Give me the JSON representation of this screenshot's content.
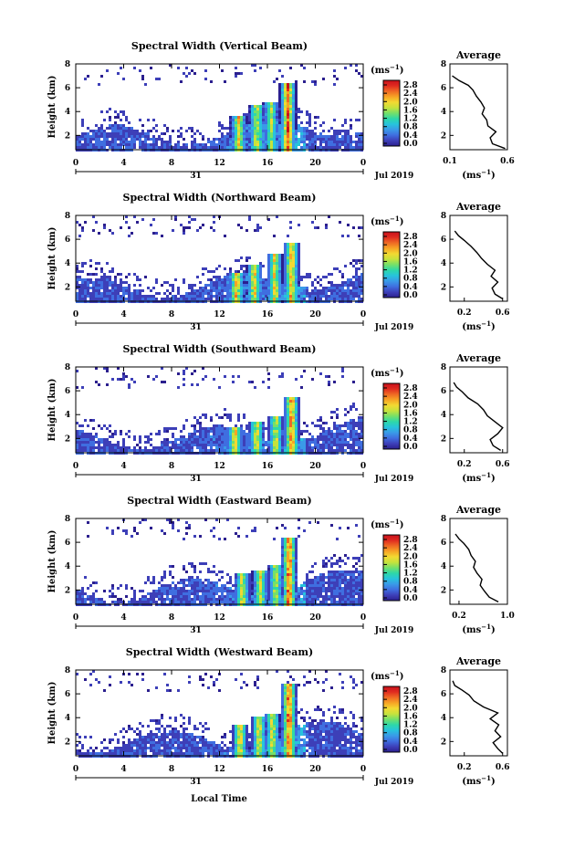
{
  "figure": {
    "xlabel": "Local Time",
    "date_label": "Jul 2019",
    "day_label": "31",
    "main_ylabel": "Height (km)",
    "unit_label": "(ms",
    "unit_exp": "−1",
    "avg_title": "Average",
    "avg_xunit": "(ms",
    "avg_xunit_exp": "−1"
  },
  "colors": {
    "colormap": [
      "#2b1f8e",
      "#3d3fb8",
      "#3f6ee0",
      "#3a9ae8",
      "#27c3dc",
      "#2ed8a8",
      "#74e06a",
      "#c6e23c",
      "#f3d932",
      "#f7a425",
      "#ef6a24",
      "#e02b20",
      "#c8101c"
    ],
    "background": "#ffffff"
  },
  "chart_data": [
    {
      "type": "heatmap",
      "title": "Spectral Width (Vertical Beam)",
      "x_ticks": [
        "0",
        "4",
        "8",
        "12",
        "16",
        "20",
        "0"
      ],
      "y_ticks": [
        "2",
        "4",
        "6",
        "8"
      ],
      "xlim": [
        0,
        24
      ],
      "ylim": [
        0.8,
        8
      ],
      "colorbar_ticks": [
        "0.0",
        "0.4",
        "0.8",
        "1.2",
        "1.6",
        "2.0",
        "2.4",
        "2.8"
      ],
      "colorbar_range": [
        0.0,
        3.0
      ],
      "convection": [
        {
          "t": 13.5,
          "top": 3.8,
          "v": 2.4
        },
        {
          "t": 15.0,
          "top": 4.6,
          "v": 2.2
        },
        {
          "t": 16.2,
          "top": 5.0,
          "v": 2.0
        },
        {
          "t": 17.6,
          "top": 6.6,
          "v": 3.0
        }
      ],
      "avg_profile": {
        "x_ticks": [
          "0.1",
          "0.6"
        ],
        "y_ticks": [
          "2",
          "4",
          "6",
          "8"
        ],
        "xlim": [
          0.1,
          0.6
        ],
        "ylim": [
          0.8,
          8
        ],
        "heights": [
          0.9,
          1.3,
          1.8,
          2.3,
          2.8,
          3.3,
          3.8,
          4.3,
          4.8,
          5.3,
          5.8,
          6.2,
          6.6,
          7.0
        ],
        "values": [
          0.58,
          0.47,
          0.45,
          0.5,
          0.43,
          0.42,
          0.38,
          0.4,
          0.37,
          0.33,
          0.3,
          0.26,
          0.18,
          0.12
        ]
      }
    },
    {
      "type": "heatmap",
      "title": "Spectral Width (Northward Beam)",
      "x_ticks": [
        "0",
        "4",
        "8",
        "12",
        "16",
        "20",
        "0"
      ],
      "y_ticks": [
        "2",
        "4",
        "6",
        "8"
      ],
      "xlim": [
        0,
        24
      ],
      "ylim": [
        0.8,
        8
      ],
      "colorbar_ticks": [
        "0.0",
        "0.4",
        "0.8",
        "1.2",
        "1.6",
        "2.0",
        "2.4",
        "2.8"
      ],
      "colorbar_range": [
        0.0,
        3.0
      ],
      "convection": [
        {
          "t": 13.3,
          "top": 3.4,
          "v": 2.6
        },
        {
          "t": 14.8,
          "top": 3.9,
          "v": 2.4
        },
        {
          "t": 16.5,
          "top": 4.8,
          "v": 2.3
        },
        {
          "t": 17.9,
          "top": 5.8,
          "v": 2.6
        }
      ],
      "avg_profile": {
        "x_ticks": [
          "0.2",
          "0.6"
        ],
        "y_ticks": [
          "2",
          "4",
          "6",
          "8"
        ],
        "xlim": [
          0.05,
          0.65
        ],
        "ylim": [
          0.8,
          8
        ],
        "heights": [
          1.0,
          1.4,
          1.9,
          2.4,
          2.9,
          3.4,
          3.9,
          4.4,
          4.9,
          5.4,
          5.9,
          6.3,
          6.7
        ],
        "values": [
          0.6,
          0.52,
          0.49,
          0.55,
          0.48,
          0.52,
          0.44,
          0.38,
          0.33,
          0.27,
          0.2,
          0.14,
          0.1
        ]
      }
    },
    {
      "type": "heatmap",
      "title": "Spectral Width (Southward Beam)",
      "x_ticks": [
        "0",
        "4",
        "8",
        "12",
        "16",
        "20",
        "0"
      ],
      "y_ticks": [
        "2",
        "4",
        "6",
        "8"
      ],
      "xlim": [
        0,
        24
      ],
      "ylim": [
        0.8,
        8
      ],
      "colorbar_ticks": [
        "0.0",
        "0.4",
        "0.8",
        "1.2",
        "1.6",
        "2.0",
        "2.4",
        "2.8"
      ],
      "colorbar_range": [
        0.0,
        3.0
      ],
      "convection": [
        {
          "t": 13.2,
          "top": 3.0,
          "v": 2.5
        },
        {
          "t": 15.0,
          "top": 3.6,
          "v": 2.3
        },
        {
          "t": 16.6,
          "top": 3.9,
          "v": 2.2
        },
        {
          "t": 17.9,
          "top": 5.6,
          "v": 2.8
        }
      ],
      "avg_profile": {
        "x_ticks": [
          "0.2",
          "0.6"
        ],
        "y_ticks": [
          "2",
          "4",
          "6",
          "8"
        ],
        "xlim": [
          0.05,
          0.65
        ],
        "ylim": [
          0.8,
          8
        ],
        "heights": [
          1.0,
          1.4,
          1.9,
          2.4,
          2.9,
          3.4,
          3.9,
          4.4,
          4.9,
          5.4,
          5.9,
          6.3,
          6.7
        ],
        "values": [
          0.58,
          0.5,
          0.47,
          0.55,
          0.6,
          0.52,
          0.44,
          0.4,
          0.34,
          0.24,
          0.18,
          0.12,
          0.09
        ]
      }
    },
    {
      "type": "heatmap",
      "title": "Spectral Width (Eastward Beam)",
      "x_ticks": [
        "0",
        "4",
        "8",
        "12",
        "16",
        "20",
        "0"
      ],
      "y_ticks": [
        "2",
        "4",
        "6",
        "8"
      ],
      "xlim": [
        0,
        24
      ],
      "ylim": [
        0.8,
        8
      ],
      "colorbar_ticks": [
        "0.0",
        "0.4",
        "0.8",
        "1.2",
        "1.6",
        "2.0",
        "2.4",
        "2.8"
      ],
      "colorbar_range": [
        0.0,
        3.0
      ],
      "convection": [
        {
          "t": 13.8,
          "top": 3.6,
          "v": 2.3
        },
        {
          "t": 15.3,
          "top": 3.8,
          "v": 2.2
        },
        {
          "t": 16.6,
          "top": 4.2,
          "v": 2.1
        },
        {
          "t": 17.7,
          "top": 6.6,
          "v": 3.0
        }
      ],
      "avg_profile": {
        "x_ticks": [
          "0.2",
          "1.0"
        ],
        "y_ticks": [
          "2",
          "4",
          "6",
          "8"
        ],
        "xlim": [
          0.05,
          1.0
        ],
        "ylim": [
          0.8,
          8
        ],
        "heights": [
          1.0,
          1.4,
          1.9,
          2.4,
          2.9,
          3.4,
          3.9,
          4.4,
          4.9,
          5.4,
          5.9,
          6.3,
          6.7
        ],
        "values": [
          0.85,
          0.7,
          0.62,
          0.55,
          0.58,
          0.5,
          0.44,
          0.47,
          0.4,
          0.36,
          0.28,
          0.2,
          0.14
        ]
      }
    },
    {
      "type": "heatmap",
      "title": "Spectral Width (Westward Beam)",
      "x_ticks": [
        "0",
        "4",
        "8",
        "12",
        "16",
        "20",
        "0"
      ],
      "y_ticks": [
        "2",
        "4",
        "6",
        "8"
      ],
      "xlim": [
        0,
        24
      ],
      "ylim": [
        0.8,
        8
      ],
      "colorbar_ticks": [
        "0.0",
        "0.4",
        "0.8",
        "1.2",
        "1.6",
        "2.0",
        "2.4",
        "2.8"
      ],
      "colorbar_range": [
        0.0,
        3.0
      ],
      "convection": [
        {
          "t": 13.6,
          "top": 3.6,
          "v": 2.5
        },
        {
          "t": 15.2,
          "top": 4.2,
          "v": 2.3
        },
        {
          "t": 16.3,
          "top": 4.5,
          "v": 2.2
        },
        {
          "t": 17.7,
          "top": 6.9,
          "v": 3.0
        }
      ],
      "avg_profile": {
        "x_ticks": [
          "0.2",
          "0.6"
        ],
        "y_ticks": [
          "2",
          "4",
          "6",
          "8"
        ],
        "xlim": [
          0.05,
          0.65
        ],
        "ylim": [
          0.8,
          8
        ],
        "heights": [
          1.0,
          1.4,
          1.9,
          2.4,
          2.9,
          3.4,
          3.9,
          4.4,
          4.9,
          5.4,
          5.9,
          6.3,
          6.7,
          7.1
        ],
        "values": [
          0.6,
          0.55,
          0.5,
          0.58,
          0.52,
          0.56,
          0.47,
          0.55,
          0.4,
          0.3,
          0.25,
          0.18,
          0.1,
          0.08
        ]
      }
    }
  ]
}
